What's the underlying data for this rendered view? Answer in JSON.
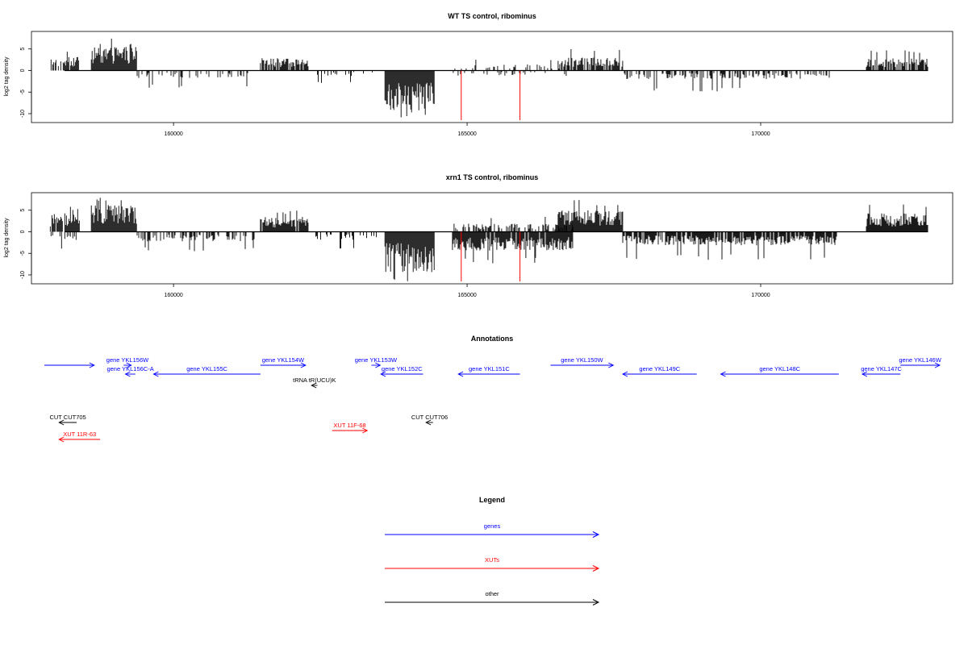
{
  "chart_data": [
    {
      "type": "bar",
      "title": "WT TS control, ribominus",
      "ylabel": "log2 tag density",
      "xlabel": "",
      "xlim": [
        157800,
        173050
      ],
      "ylim": [
        -11.5,
        8.5
      ],
      "xticks": [
        "160000",
        "165000",
        "170000"
      ],
      "yticks": [
        "-10",
        "-5",
        "0",
        "5"
      ],
      "grid": false,
      "markers": [
        164900,
        165900
      ],
      "segments": [
        {
          "x_start": 157900,
          "x_end": 158400,
          "sign": 1,
          "mean": 2.5,
          "peak": 4.5,
          "density": 0.7
        },
        {
          "x_start": 158600,
          "x_end": 159380,
          "sign": 1,
          "mean": 4.5,
          "peak": 7.5,
          "density": 1.0
        },
        {
          "x_start": 159380,
          "x_end": 161400,
          "sign": -1,
          "mean": 1.4,
          "peak": 4.0,
          "density": 0.25
        },
        {
          "x_start": 161480,
          "x_end": 162300,
          "sign": 1,
          "mean": 2.3,
          "peak": 4.5,
          "density": 0.8
        },
        {
          "x_start": 162300,
          "x_end": 163550,
          "sign": -1,
          "mean": 1.0,
          "peak": 3.0,
          "density": 0.15
        },
        {
          "x_start": 163600,
          "x_end": 164450,
          "sign": -1,
          "mean": 7.5,
          "peak": 11.0,
          "density": 1.0
        },
        {
          "x_start": 164750,
          "x_end": 166800,
          "sign": 1,
          "mean": 1.2,
          "peak": 3.0,
          "density": 0.2
        },
        {
          "x_start": 164750,
          "x_end": 166800,
          "sign": -1,
          "mean": 1.0,
          "peak": 2.5,
          "density": 0.15
        },
        {
          "x_start": 166550,
          "x_end": 167650,
          "sign": 1,
          "mean": 2.5,
          "peak": 5.5,
          "density": 0.8
        },
        {
          "x_start": 167650,
          "x_end": 171300,
          "sign": -1,
          "mean": 1.6,
          "peak": 5.0,
          "density": 0.45
        },
        {
          "x_start": 171800,
          "x_end": 172850,
          "sign": 1,
          "mean": 2.3,
          "peak": 5.0,
          "density": 0.7
        }
      ]
    },
    {
      "type": "bar",
      "title": "xrn1 TS control, ribominus",
      "ylabel": "log2 tag density",
      "xlabel": "",
      "xlim": [
        157800,
        173050
      ],
      "ylim": [
        -11.5,
        8.5
      ],
      "xticks": [
        "160000",
        "165000",
        "170000"
      ],
      "yticks": [
        "-10",
        "-5",
        "0",
        "5"
      ],
      "grid": false,
      "markers": [
        164900,
        165900
      ],
      "segments": [
        {
          "x_start": 157900,
          "x_end": 158400,
          "sign": 1,
          "mean": 3.5,
          "peak": 6.0,
          "density": 0.9
        },
        {
          "x_start": 157900,
          "x_end": 158400,
          "sign": -1,
          "mean": 1.5,
          "peak": 4.0,
          "density": 0.4
        },
        {
          "x_start": 158600,
          "x_end": 159380,
          "sign": 1,
          "mean": 5.0,
          "peak": 8.3,
          "density": 1.0
        },
        {
          "x_start": 159380,
          "x_end": 161400,
          "sign": -1,
          "mean": 1.8,
          "peak": 4.5,
          "density": 0.45
        },
        {
          "x_start": 161480,
          "x_end": 162300,
          "sign": 1,
          "mean": 2.8,
          "peak": 5.0,
          "density": 0.9
        },
        {
          "x_start": 162300,
          "x_end": 163550,
          "sign": -1,
          "mean": 1.5,
          "peak": 4.0,
          "density": 0.3
        },
        {
          "x_start": 163600,
          "x_end": 164450,
          "sign": -1,
          "mean": 7.5,
          "peak": 11.5,
          "density": 1.0
        },
        {
          "x_start": 164750,
          "x_end": 166800,
          "sign": 1,
          "mean": 1.5,
          "peak": 3.5,
          "density": 0.5
        },
        {
          "x_start": 164750,
          "x_end": 166800,
          "sign": -1,
          "mean": 3.5,
          "peak": 7.5,
          "density": 0.9
        },
        {
          "x_start": 166550,
          "x_end": 167650,
          "sign": 1,
          "mean": 4.0,
          "peak": 7.5,
          "density": 1.0
        },
        {
          "x_start": 167650,
          "x_end": 171300,
          "sign": -1,
          "mean": 2.5,
          "peak": 6.5,
          "density": 0.8
        },
        {
          "x_start": 171800,
          "x_end": 172850,
          "sign": 1,
          "mean": 3.5,
          "peak": 7.0,
          "density": 1.0
        }
      ]
    }
  ],
  "annotations": {
    "title": "Annotations",
    "features": [
      {
        "label": "",
        "type": "gene",
        "strand": "+",
        "start": 157800,
        "end": 158650
      },
      {
        "label": "gene YKL156W",
        "type": "gene",
        "strand": "+",
        "start": 159150,
        "end": 159280
      },
      {
        "label": "gene YKL156C-A",
        "type": "gene",
        "strand": "-",
        "start": 159180,
        "end": 159350
      },
      {
        "label": "gene YKL155C",
        "type": "gene",
        "strand": "-",
        "start": 159660,
        "end": 161480
      },
      {
        "label": "gene YKL154W",
        "type": "gene",
        "strand": "+",
        "start": 161480,
        "end": 162250
      },
      {
        "label": "tRNA tR(UCU)K",
        "type": "other",
        "strand": "-",
        "start": 162350,
        "end": 162450
      },
      {
        "label": "gene YKL153W",
        "type": "gene",
        "strand": "+",
        "start": 163370,
        "end": 163520
      },
      {
        "label": "gene YKL152C",
        "type": "gene",
        "strand": "-",
        "start": 163530,
        "end": 164250
      },
      {
        "label": "gene YKL151C",
        "type": "gene",
        "strand": "-",
        "start": 164850,
        "end": 165900
      },
      {
        "label": "gene YKL150W",
        "type": "gene",
        "strand": "+",
        "start": 166420,
        "end": 167490
      },
      {
        "label": "gene YKL149C",
        "type": "gene",
        "strand": "-",
        "start": 167650,
        "end": 168910
      },
      {
        "label": "gene YKL148C",
        "type": "gene",
        "strand": "-",
        "start": 169320,
        "end": 171330
      },
      {
        "label": "gene YKL147C",
        "type": "gene",
        "strand": "-",
        "start": 171730,
        "end": 172380
      },
      {
        "label": "gene YKL146W",
        "type": "gene",
        "strand": "+",
        "start": 172380,
        "end": 173050
      },
      {
        "label": "CUT CUT705",
        "type": "other",
        "strand": "-",
        "start": 158050,
        "end": 158350
      },
      {
        "label": "CUT CUT706",
        "type": "other",
        "strand": "-",
        "start": 164300,
        "end": 164420
      },
      {
        "label": "XUT 11R-63",
        "type": "XUT",
        "strand": "-",
        "start": 158050,
        "end": 158750
      },
      {
        "label": "XUT 11F-68",
        "type": "XUT",
        "strand": "+",
        "start": 162700,
        "end": 163300
      }
    ]
  },
  "legend": {
    "title": "Legend",
    "items": [
      {
        "label": "genes",
        "color": "#0000ff"
      },
      {
        "label": "XUTs",
        "color": "#ff0000"
      },
      {
        "label": "other",
        "color": "#000000"
      }
    ]
  },
  "colors": {
    "gene": "#0000ff",
    "XUT": "#ff0000",
    "other": "#000000",
    "marker": "#ff0000"
  }
}
